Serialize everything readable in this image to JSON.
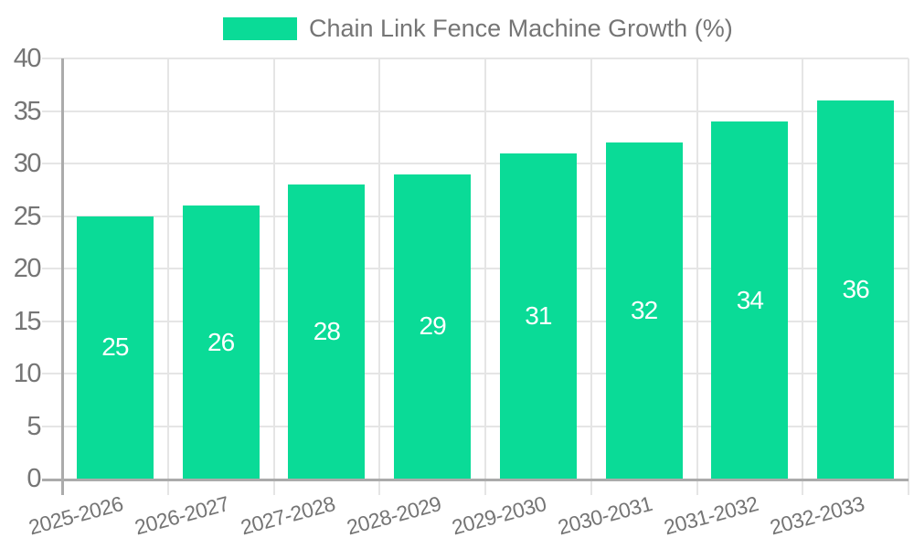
{
  "legend": {
    "label": "Chain Link Fence Machine Growth (%)"
  },
  "chart_data": {
    "type": "bar",
    "title": "Chain Link Fence Machine Growth (%)",
    "categories": [
      "2025-2026",
      "2026-2027",
      "2027-2028",
      "2028-2029",
      "2029-2030",
      "2030-2031",
      "2031-2032",
      "2032-2033"
    ],
    "values": [
      25,
      26,
      28,
      29,
      31,
      32,
      34,
      36
    ],
    "series": [
      {
        "name": "Chain Link Fence Machine Growth (%)",
        "values": [
          25,
          26,
          28,
          29,
          31,
          32,
          34,
          36
        ]
      }
    ],
    "bar_value_labels": [
      "25",
      "26",
      "28",
      "29",
      "31",
      "32",
      "34",
      "36"
    ],
    "xlabel": "",
    "ylabel": "",
    "ylim": [
      0,
      40
    ],
    "yticks": [
      0,
      5,
      10,
      15,
      20,
      25,
      30,
      35,
      40
    ],
    "grid": true,
    "legend_position": "top",
    "x_label_rotation_deg": -15,
    "colors": {
      "bar": "#0ADB97",
      "bar_label": "#FFFFFF",
      "grid": "#E5E5E5",
      "axis": "#ABABAB",
      "tick_label": "#757575",
      "legend_text": "#757575",
      "background": "#FFFFFF"
    }
  }
}
